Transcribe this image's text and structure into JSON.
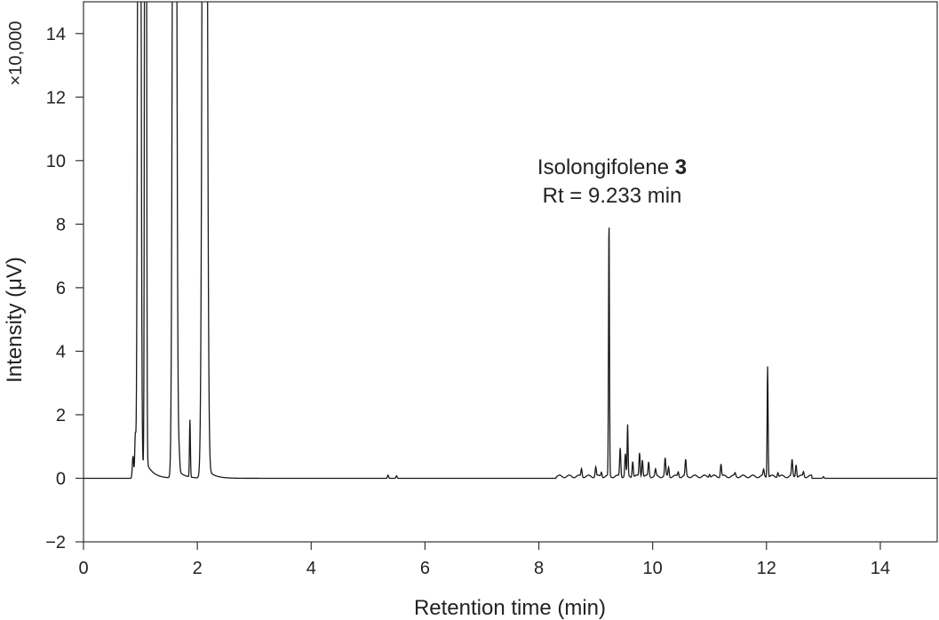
{
  "chart_data": {
    "type": "line",
    "title": "",
    "xlabel": "Retention time (min)",
    "ylabel": "Intensity (μV)",
    "y_multiplier_label": "×10,000",
    "xlim": [
      0,
      15
    ],
    "ylim": [
      -2,
      15
    ],
    "xticks": [
      0,
      2,
      4,
      6,
      8,
      10,
      12,
      14
    ],
    "yticks": [
      -2,
      0,
      2,
      4,
      6,
      8,
      10,
      12,
      14
    ],
    "ytick_labels": [
      "−2",
      "0",
      "2",
      "4",
      "6",
      "8",
      "10",
      "12",
      "14"
    ],
    "grid": false,
    "line_color": "#1a1a1a",
    "baseline": 0.0,
    "peaks": [
      {
        "rt": 0.87,
        "height": 0.7,
        "width": 0.012
      },
      {
        "rt": 0.91,
        "height": 1.3,
        "width": 0.01
      },
      {
        "rt": 0.98,
        "height": 60,
        "width": 0.02
      },
      {
        "rt": 1.09,
        "height": 60,
        "width": 0.012
      },
      {
        "rt": 1.6,
        "height": 60,
        "width": 0.025
      },
      {
        "rt": 1.68,
        "height": 0.5,
        "width": 0.012
      },
      {
        "rt": 1.87,
        "height": 1.8,
        "width": 0.008
      },
      {
        "rt": 2.13,
        "height": 60,
        "width": 0.03
      },
      {
        "rt": 5.35,
        "height": 0.1,
        "width": 0.01
      },
      {
        "rt": 5.5,
        "height": 0.08,
        "width": 0.01
      },
      {
        "rt": 8.75,
        "height": 0.25,
        "width": 0.01
      },
      {
        "rt": 9.0,
        "height": 0.3,
        "width": 0.01
      },
      {
        "rt": 9.1,
        "height": 0.15,
        "width": 0.01
      },
      {
        "rt": 9.233,
        "height": 8.05,
        "width": 0.008
      },
      {
        "rt": 9.43,
        "height": 0.9,
        "width": 0.01
      },
      {
        "rt": 9.52,
        "height": 0.7,
        "width": 0.01
      },
      {
        "rt": 9.56,
        "height": 1.6,
        "width": 0.008
      },
      {
        "rt": 9.65,
        "height": 0.5,
        "width": 0.01
      },
      {
        "rt": 9.77,
        "height": 0.75,
        "width": 0.01
      },
      {
        "rt": 9.82,
        "height": 0.55,
        "width": 0.01
      },
      {
        "rt": 9.93,
        "height": 0.45,
        "width": 0.01
      },
      {
        "rt": 10.05,
        "height": 0.2,
        "width": 0.01
      },
      {
        "rt": 10.22,
        "height": 0.55,
        "width": 0.01
      },
      {
        "rt": 10.28,
        "height": 0.3,
        "width": 0.01
      },
      {
        "rt": 10.45,
        "height": 0.15,
        "width": 0.01
      },
      {
        "rt": 10.58,
        "height": 0.5,
        "width": 0.01
      },
      {
        "rt": 11.0,
        "height": 0.1,
        "width": 0.01
      },
      {
        "rt": 11.2,
        "height": 0.4,
        "width": 0.01
      },
      {
        "rt": 11.45,
        "height": 0.1,
        "width": 0.01
      },
      {
        "rt": 11.95,
        "height": 0.2,
        "width": 0.01
      },
      {
        "rt": 12.02,
        "height": 3.5,
        "width": 0.008
      },
      {
        "rt": 12.2,
        "height": 0.15,
        "width": 0.01
      },
      {
        "rt": 12.45,
        "height": 0.5,
        "width": 0.01
      },
      {
        "rt": 12.52,
        "height": 0.4,
        "width": 0.01
      },
      {
        "rt": 12.65,
        "height": 0.15,
        "width": 0.01
      },
      {
        "rt": 13.0,
        "height": 0.05,
        "width": 0.01
      }
    ],
    "annotations": [
      {
        "text": "Isolongifolene",
        "bold_suffix": "3",
        "line2": "Rt = 9.233 min"
      }
    ]
  }
}
